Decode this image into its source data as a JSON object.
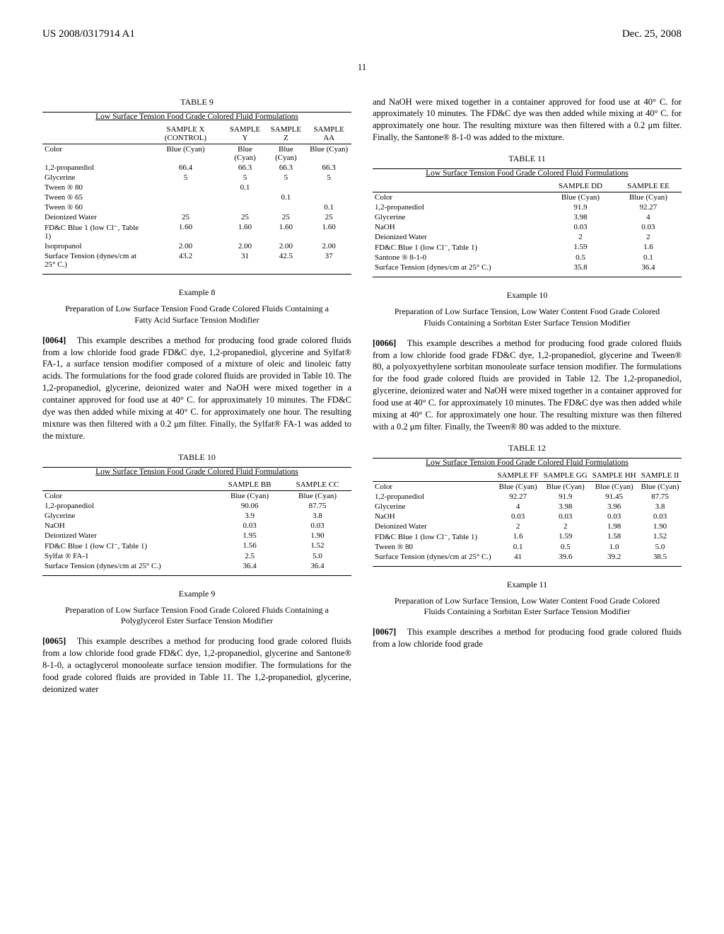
{
  "header": {
    "left": "US 2008/0317914 A1",
    "right": "Dec. 25, 2008"
  },
  "page_top": "11",
  "left": {
    "table9": {
      "label": "TABLE 9",
      "caption": "Low Surface Tension Food Grade Colored Fluid Formulations",
      "headers": [
        "",
        "SAMPLE X (CONTROL)",
        "SAMPLE Y",
        "SAMPLE Z",
        "SAMPLE AA"
      ],
      "rows": [
        [
          "Color",
          "Blue (Cyan)",
          "Blue (Cyan)",
          "Blue (Cyan)",
          "Blue (Cyan)"
        ],
        [
          "1,2-propanediol",
          "66.4",
          "66.3",
          "66.3",
          "66.3"
        ],
        [
          "Glycerine",
          "5",
          "5",
          "5",
          "5"
        ],
        [
          "Tween ® 80",
          "",
          "0.1",
          "",
          ""
        ],
        [
          "Tween ® 65",
          "",
          "",
          "0.1",
          ""
        ],
        [
          "Tween ® 60",
          "",
          "",
          "",
          "0.1"
        ],
        [
          "Deionized Water",
          "25",
          "25",
          "25",
          "25"
        ],
        [
          "FD&C Blue 1 (low Cl⁻, Table 1)",
          "1.60",
          "1.60",
          "1.60",
          "1.60"
        ],
        [
          "Isopropanol",
          "2.00",
          "2.00",
          "2.00",
          "2.00"
        ],
        [
          "Surface Tension (dynes/cm at 25° C.)",
          "43.2",
          "31",
          "42.5",
          "37"
        ]
      ]
    },
    "example8": {
      "title": "Example 8",
      "subtitle": "Preparation of Low Surface Tension Food Grade Colored Fluids Containing a Fatty Acid Surface Tension Modifier",
      "num": "[0064]",
      "body": "This example describes a method for producing food grade colored fluids from a low chloride food grade FD&C dye, 1,2-propanediol, glycerine and Sylfat® FA-1, a surface tension modifier composed of a mixture of oleic and linoleic fatty acids. The formulations for the food grade colored fluids are provided in Table 10. The 1,2-propanediol, glycerine, deionized water and NaOH were mixed together in a container approved for food use at 40° C. for approximately 10 minutes. The FD&C dye was then added while mixing at 40° C. for approximately one hour. The resulting mixture was then filtered with a 0.2 μm filter. Finally, the Sylfat® FA-1 was added to the mixture."
    },
    "table10": {
      "label": "TABLE 10",
      "caption": "Low Surface Tension Food Grade Colored Fluid Formulations",
      "headers": [
        "",
        "SAMPLE BB",
        "SAMPLE CC"
      ],
      "rows": [
        [
          "Color",
          "Blue (Cyan)",
          "Blue (Cyan)"
        ],
        [
          "1,2-propanediol",
          "90.06",
          "87.75"
        ],
        [
          "Glycerine",
          "3.9",
          "3.8"
        ],
        [
          "NaOH",
          "0.03",
          "0.03"
        ],
        [
          "Deionized Water",
          "1.95",
          "1.90"
        ],
        [
          "FD&C Blue 1 (low Cl⁻, Table 1)",
          "1.56",
          "1.52"
        ],
        [
          "Sylfat ® FA-1",
          "2.5",
          "5.0"
        ],
        [
          "Surface Tension (dynes/cm at 25° C.)",
          "36.4",
          "36.4"
        ]
      ]
    },
    "example9": {
      "title": "Example 9",
      "subtitle": "Preparation of Low Surface Tension Food Grade Colored Fluids Containing a Polyglycerol Ester Surface Tension Modifier",
      "num": "[0065]",
      "body": "This example describes a method for producing food grade colored fluids from a low chloride food grade FD&C dye, 1,2-propanediol, glycerine and Santone® 8-1-0, a octaglycerol monooleate surface tension modifier. The formulations for the food grade colored fluids are provided in Table 11. The 1,2-propanediol, glycerine, deionized water"
    }
  },
  "right": {
    "continued": "and NaOH were mixed together in a container approved for food use at 40° C. for approximately 10 minutes. The FD&C dye was then added while mixing at 40° C. for approximately one hour. The resulting mixture was then filtered with a 0.2 μm filter. Finally, the Santone® 8-1-0 was added to the mixture.",
    "table11": {
      "label": "TABLE 11",
      "caption": "Low Surface Tension Food Grade Colored Fluid Formulations",
      "headers": [
        "",
        "SAMPLE DD",
        "SAMPLE EE"
      ],
      "rows": [
        [
          "Color",
          "Blue (Cyan)",
          "Blue (Cyan)"
        ],
        [
          "1,2-propanediol",
          "91.9",
          "92.27"
        ],
        [
          "Glycerine",
          "3.98",
          "4"
        ],
        [
          "NaOH",
          "0.03",
          "0.03"
        ],
        [
          "Deionized Water",
          "2",
          "2"
        ],
        [
          "FD&C Blue 1 (low Cl⁻, Table 1)",
          "1.59",
          "1.6"
        ],
        [
          "Santone ® 8-1-0",
          "0.5",
          "0.1"
        ],
        [
          "Surface Tension (dynes/cm at 25° C.)",
          "35.8",
          "36.4"
        ]
      ]
    },
    "example10": {
      "title": "Example 10",
      "subtitle": "Preparation of Low Surface Tension, Low Water Content Food Grade Colored Fluids Containing a Sorbitan Ester Surface Tension Modifier",
      "num": "[0066]",
      "body": "This example describes a method for producing food grade colored fluids from a low chloride food grade FD&C dye, 1,2-propanediol, glycerine and Tween® 80, a polyoxyethylene sorbitan monooleate surface tension modifier. The formulations for the food grade colored fluids are provided in Table 12. The 1,2-propanediol, glycerine, deionized water and NaOH were mixed together in a container approved for food use at 40° C. for approximately 10 minutes. The FD&C dye was then added while mixing at 40° C. for approximately one hour. The resulting mixture was then filtered with a 0.2 μm filter. Finally, the Tween® 80 was added to the mixture."
    },
    "table12": {
      "label": "TABLE 12",
      "caption": "Low Surface Tension Food Grade Colored Fluid Formulations",
      "headers": [
        "",
        "SAMPLE FF",
        "SAMPLE GG",
        "SAMPLE HH",
        "SAMPLE II"
      ],
      "rows": [
        [
          "Color",
          "Blue (Cyan)",
          "Blue (Cyan)",
          "Blue (Cyan)",
          "Blue (Cyan)"
        ],
        [
          "1,2-propanediol",
          "92.27",
          "91.9",
          "91.45",
          "87.75"
        ],
        [
          "Glycerine",
          "4",
          "3.98",
          "3.96",
          "3.8"
        ],
        [
          "NaOH",
          "0.03",
          "0.03",
          "0.03",
          "0.03"
        ],
        [
          "Deionized Water",
          "2",
          "2",
          "1.98",
          "1.90"
        ],
        [
          "FD&C Blue 1 (low Cl⁻, Table 1)",
          "1.6",
          "1.59",
          "1.58",
          "1.52"
        ],
        [
          "Tween ® 80",
          "0.1",
          "0.5",
          "1.0",
          "5.0"
        ],
        [
          "Surface Tension (dynes/cm at 25° C.)",
          "41",
          "39.6",
          "39.2",
          "38.5"
        ]
      ]
    },
    "example11": {
      "title": "Example 11",
      "subtitle": "Preparation of Low Surface Tension, Low Water Content Food Grade Colored Fluids Containing a Sorbitan Ester Surface Tension Modifier",
      "num": "[0067]",
      "body": "This example describes a method for producing food grade colored fluids from a low chloride food grade"
    }
  }
}
